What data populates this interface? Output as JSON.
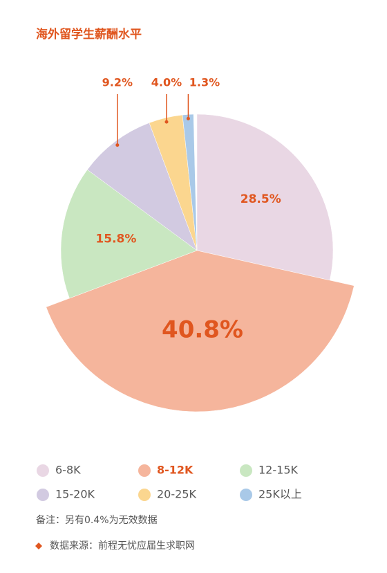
{
  "chart_data": {
    "type": "pie",
    "title": "海外留学生薪酬水平",
    "categories": [
      "6-8K",
      "8-12K",
      "12-15K",
      "15-20K",
      "20-25K",
      "25K以上"
    ],
    "values": [
      28.5,
      40.8,
      15.8,
      9.2,
      4.0,
      1.3
    ],
    "value_labels": [
      "28.5%",
      "40.8%",
      "15.8%",
      "9.2%",
      "4.0%",
      "1.3%"
    ],
    "colors": [
      "#e9d7e4",
      "#f5b59c",
      "#c9e7c1",
      "#d2cae1",
      "#fbd68f",
      "#a9c9e8"
    ],
    "highlight": "8-12K",
    "note": "备注：另有0.4%为无效数据",
    "source": "数据来源：前程无忧应届生求职网"
  }
}
